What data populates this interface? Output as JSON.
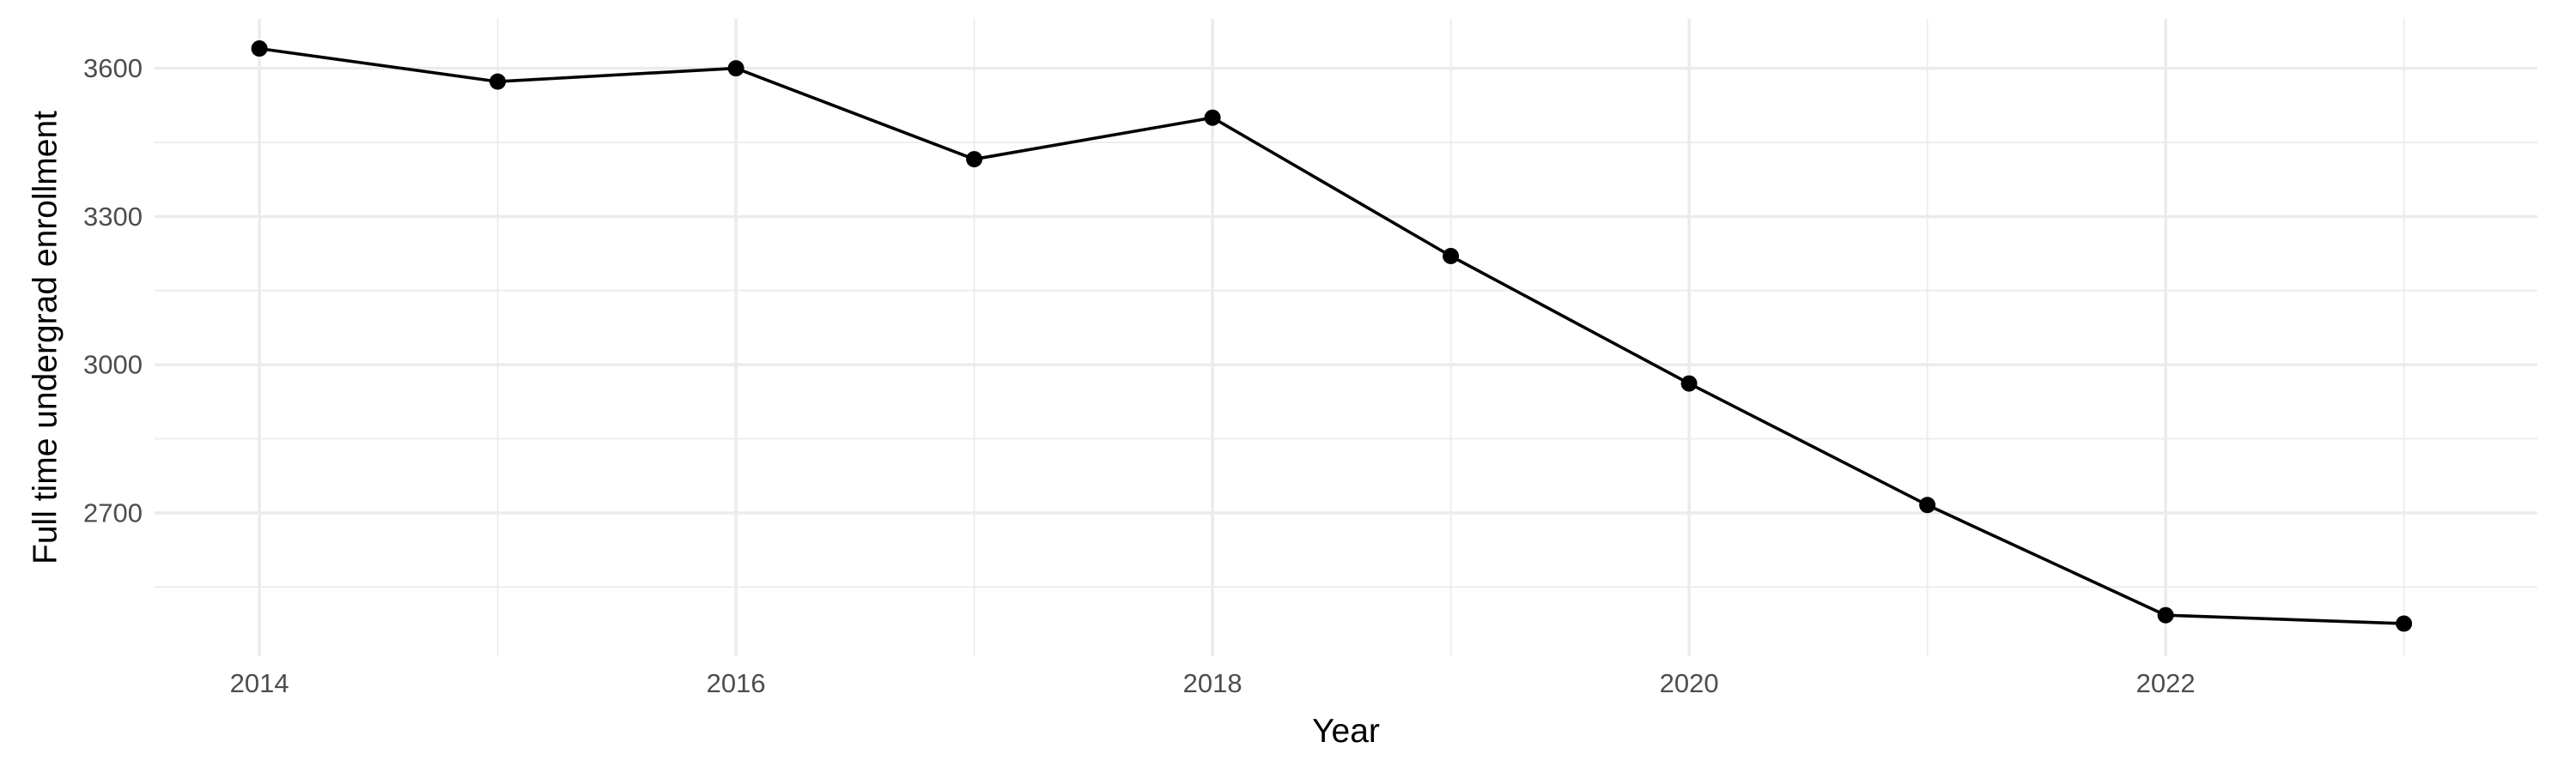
{
  "chart_data": {
    "type": "line",
    "title": "",
    "xlabel": "Year",
    "ylabel": "Full time undergrad enrollment",
    "x": [
      2014,
      2015,
      2016,
      2017,
      2018,
      2019,
      2020,
      2021,
      2022,
      2023
    ],
    "series": [
      {
        "values": [
          3640,
          3573,
          3600,
          3416,
          3500,
          3220,
          2962,
          2716,
          2493,
          2476
        ]
      }
    ],
    "xlim": [
      2013.56,
      2023.56
    ],
    "ylim": [
      2410,
      3700
    ],
    "x_ticks": [
      2014,
      2016,
      2018,
      2020,
      2022
    ],
    "y_ticks": [
      2700,
      3000,
      3300,
      3600
    ],
    "x_tick_labels": [
      "2014",
      "2016",
      "2018",
      "2020",
      "2022"
    ],
    "y_tick_labels": [
      "2700",
      "3000",
      "3300",
      "3600"
    ],
    "x_minor_ticks": [
      2015,
      2017,
      2019,
      2021,
      2023
    ],
    "y_minor_ticks": [
      2550,
      2850,
      3150,
      3450
    ],
    "grid": true,
    "legend": "none",
    "line_color": "#000000",
    "point_color": "#000000",
    "grid_color": "#ebebeb"
  }
}
